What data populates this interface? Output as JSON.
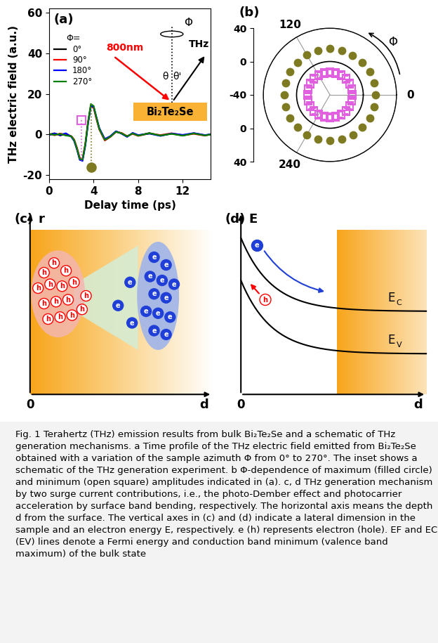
{
  "chart_data": [
    {
      "type": "line",
      "panel_label": "(a)",
      "xlabel": "Delay time (ps)",
      "ylabel": "THz electric field (a.u.)",
      "xlim": [
        0,
        14.5
      ],
      "ylim": [
        -22,
        62
      ],
      "xticks": [
        0,
        4,
        8,
        12
      ],
      "yticks": [
        -20,
        0,
        20,
        40,
        60
      ],
      "legend": "upper left",
      "legend_title": "Φ=",
      "x": [
        0,
        0.5,
        1,
        1.5,
        2,
        2.25,
        2.5,
        2.75,
        3,
        3.25,
        3.5,
        3.75,
        4,
        4.25,
        4.5,
        5,
        5.5,
        6,
        6.5,
        7,
        7.5,
        8,
        9,
        10,
        11,
        12,
        13,
        14,
        14.5
      ],
      "series": [
        {
          "name": "0°",
          "color": "#000000",
          "values": [
            0,
            0.6,
            -0.5,
            0.4,
            -1,
            -3,
            -7,
            -12,
            -12.5,
            -5,
            6,
            14.5,
            13.5,
            8,
            3,
            -2.5,
            -1,
            1.5,
            0.5,
            -1,
            0.6,
            -0.5,
            0.7,
            -0.6,
            0.4,
            -0.5,
            0.6,
            -0.4,
            0
          ]
        },
        {
          "name": "90°",
          "color": "#ff0000",
          "values": [
            0.3,
            -0.4,
            0.5,
            -0.3,
            -0.8,
            -2.5,
            -6.5,
            -11.5,
            -12,
            -4.5,
            6.5,
            14,
            13,
            7.5,
            2.5,
            -3,
            -1.2,
            1.2,
            0.8,
            -0.8,
            0.3,
            -0.7,
            0.5,
            -0.3,
            0.6,
            -0.4,
            0.3,
            -0.6,
            0.2
          ]
        },
        {
          "name": "180°",
          "color": "#0000ff",
          "values": [
            -0.3,
            0.5,
            -0.2,
            0.6,
            -1.2,
            -3.2,
            -7.5,
            -12.5,
            -13,
            -5.5,
            5.5,
            14,
            13.5,
            8.5,
            3.2,
            -2.2,
            -0.8,
            1.6,
            0.4,
            -1.2,
            0.8,
            -0.3,
            0.4,
            -0.7,
            0.5,
            -0.2,
            0.7,
            -0.3,
            0.1
          ]
        },
        {
          "name": "270°",
          "color": "#008000",
          "values": [
            0.2,
            -0.2,
            0.3,
            -0.5,
            -0.9,
            -2.8,
            -7,
            -12,
            -12.3,
            -4.8,
            6.2,
            15,
            14,
            8.2,
            2.8,
            -2.7,
            -1.1,
            1.3,
            0.6,
            -0.9,
            0.5,
            -0.6,
            0.6,
            -0.5,
            0.3,
            -0.6,
            0.5,
            -0.5,
            0
          ]
        }
      ],
      "minimum_marker": {
        "x": 2.9,
        "y": 7,
        "line_to": -13,
        "marker": "open square",
        "color": "#e060e0"
      },
      "maximum_marker": {
        "x": 3.8,
        "y": -16,
        "line_to": 15,
        "marker": "filled circle",
        "color": "#7d7a22"
      },
      "inset": {
        "sample": "Bi₂Te₂Se",
        "pump": "800nm",
        "emission": "THz",
        "incidence_angle": "θ",
        "emission_angle": "θ'",
        "azimuth": "Φ"
      }
    },
    {
      "type": "polar",
      "panel_label": "(b)",
      "theta": [
        0,
        15,
        30,
        45,
        60,
        75,
        90,
        105,
        120,
        135,
        150,
        165,
        180,
        195,
        210,
        225,
        240,
        255,
        270,
        285,
        300,
        315,
        330,
        345
      ],
      "thetaticks": [
        0,
        120,
        240
      ],
      "rlim": [
        -40,
        40
      ],
      "rticks": [
        -40,
        0,
        40
      ],
      "direction_label": "Φ",
      "series": [
        {
          "marker": "filled circle",
          "color": "#7d7a22",
          "values": [
            15,
            14.8,
            15.2,
            15,
            14.6,
            15.1,
            15.3,
            14.9,
            15,
            14.7,
            15.2,
            15,
            14.8,
            15.1,
            15,
            14.9,
            15.3,
            15,
            14.7,
            15.1,
            15,
            14.8,
            15.2,
            15
          ]
        },
        {
          "marker": "open square",
          "color": "#e060e0",
          "values": [
            -13,
            -12.8,
            -13.2,
            -13,
            -12.7,
            -13.1,
            -13.3,
            -12.9,
            -13,
            -12.8,
            -13.2,
            -13,
            -12.9,
            -13.1,
            -13,
            -12.8,
            -13.2,
            -13,
            -12.7,
            -13.1,
            -13,
            -12.9,
            -13.2,
            -13
          ]
        }
      ]
    }
  ],
  "diagrams": {
    "panel_c": {
      "panel_label": "(c)",
      "vertical_axis": "r",
      "horizontal_axis": "d",
      "origin": "0",
      "hole": "h",
      "electron": "e"
    },
    "panel_d": {
      "panel_label": "(d)",
      "vertical_axis": "E",
      "horizontal_axis": "d",
      "origin": "0",
      "hole": "h",
      "electron": "e",
      "conduction_band": {
        "text": "E",
        "subscript": "C"
      },
      "valence_band": {
        "text": "E",
        "subscript": "V"
      }
    }
  },
  "caption": "Fig. 1 Terahertz (THz) emission results from bulk Bi₂Te₂Se and a schematic of THz generation mechanisms. a Time profile of the THz electric field emitted from Bi₂Te₂Se obtained with a variation of the sample azimuth Φ from 0° to 270°. The inset shows a schematic of the THz generation experiment. b Φ-dependence of maximum (filled circle) and minimum (open square) amplitudes indicated in (a). c, d THz generation mechanism by two surge current contributions, i.e., the photo-Dember effect and photocarrier acceleration by surface band bending, respectively. The horizontal axis means the depth d from the surface. The vertical axes in (c) and (d) indicate a lateral dimension in the sample and an electron energy E, respectively. e (h) represents electron (hole). EF and EC (EV) lines denote a Fermi energy and conduction band minimum (valence band maximum) of the bulk state"
}
